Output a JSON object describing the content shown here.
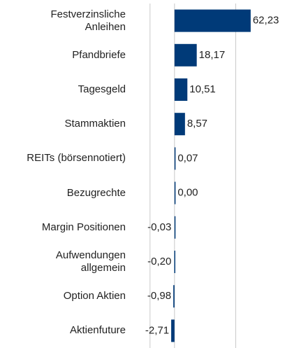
{
  "chart_data": {
    "type": "barh",
    "categories": [
      "Festverzinsliche\nAnleihen",
      "Pfandbriefe",
      "Tagesgeld",
      "Stammaktien",
      "REITs (börsennotiert)",
      "Bezugrechte",
      "Margin Positionen",
      "Aufwendungen\nallgemein",
      "Option Aktien",
      "Aktienfuture"
    ],
    "values": [
      62.23,
      18.17,
      10.51,
      8.57,
      0.07,
      0.0,
      -0.03,
      -0.2,
      -0.98,
      -2.71
    ],
    "value_labels": [
      "62,23",
      "18,17",
      "10,51",
      "8,57",
      "0,07",
      "0,00",
      "-0,03",
      "-0,20",
      "-0,98",
      "-2,71"
    ],
    "color": "#003a78",
    "xlim": [
      -37,
      90
    ],
    "grid_lines": [
      -20,
      50
    ],
    "grid": true
  }
}
